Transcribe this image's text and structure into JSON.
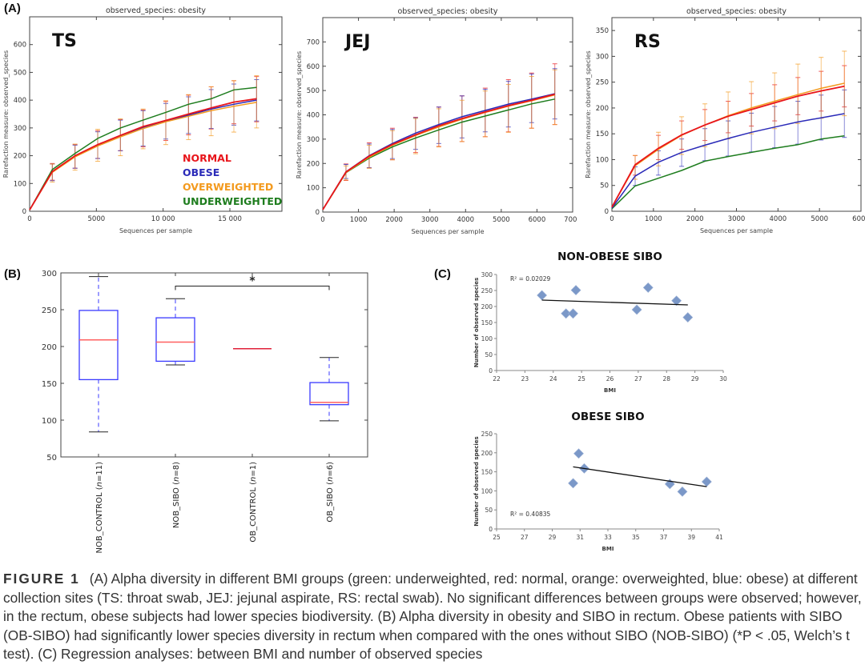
{
  "panel_labels": {
    "a": "(A)",
    "b": "(B)",
    "c": "(C)"
  },
  "caption": {
    "head": "FIGURE 1",
    "body": "(A) Alpha diversity in different BMI groups (green: underweighted, red: normal, orange: overweighted, blue: obese) at different collection sites (TS: throat swab, JEJ: jejunal aspirate, RS: rectal swab). No significant differences between groups were observed; however, in the rectum, obese subjects had lower species biodiversity. (B) Alpha diversity in obesity and SIBO in rectum. Obese patients with SIBO (OB-SIBO) had significantly lower species diversity in rectum when compared with the ones without SIBO (NOB-SIBO) (*P < .05, Welch’s t test). (C) Regression analyses: between BMI and number of observed species"
  },
  "colors": {
    "normal": "#e8151b",
    "obese": "#2a2ab8",
    "overweighted": "#f39a1e",
    "underweighted": "#1e7d1e",
    "box": "#3a3aff",
    "median": "#ff6060",
    "marker": "#7b98c8"
  },
  "chart_data": [
    {
      "id": "TS",
      "type": "line",
      "title": "observed_species:  obesity",
      "site_label": "TS",
      "xlabel": "Sequences per sample",
      "ylabel": "Rarefaction measure: observed_species",
      "xlim": [
        0,
        18900
      ],
      "ylim": [
        0,
        700
      ],
      "xticks": [
        0,
        5000,
        10000,
        15000
      ],
      "xtick_labels": [
        "0",
        "5000",
        "10 000",
        "15 000"
      ],
      "yticks": [
        0,
        100,
        200,
        300,
        400,
        500,
        600
      ],
      "legend": [
        "NORMAL",
        "OBESE",
        "OVERWEIGHTED",
        "UNDERWEIGHTED"
      ],
      "legend_placement": "bottom-right",
      "x": [
        0,
        1700,
        3400,
        5100,
        6800,
        8500,
        10200,
        11900,
        13600,
        15300,
        17000
      ],
      "series": [
        {
          "name": "NORMAL",
          "color_key": "normal",
          "values": [
            5,
            143,
            200,
            240,
            273,
            305,
            327,
            350,
            372,
            393,
            405
          ],
          "err_lo": [
            5,
            112,
            155,
            190,
            218,
            232,
            255,
            275,
            296,
            315,
            322
          ],
          "err_hi": [
            5,
            172,
            240,
            290,
            330,
            365,
            395,
            418,
            448,
            470,
            485
          ]
        },
        {
          "name": "OBESE",
          "color_key": "obese",
          "values": [
            5,
            142,
            199,
            238,
            272,
            302,
            325,
            346,
            368,
            385,
            400
          ],
          "err_lo": [
            5,
            110,
            155,
            190,
            218,
            235,
            260,
            280,
            298,
            310,
            325
          ],
          "err_hi": [
            5,
            170,
            238,
            286,
            328,
            362,
            388,
            412,
            438,
            458,
            474
          ]
        },
        {
          "name": "OVERWEIGHTED",
          "color_key": "overweighted",
          "values": [
            5,
            140,
            196,
            235,
            268,
            298,
            322,
            342,
            362,
            378,
            392
          ],
          "err_lo": [
            5,
            105,
            148,
            180,
            200,
            225,
            240,
            258,
            272,
            285,
            300
          ],
          "err_hi": [
            5,
            170,
            242,
            295,
            333,
            368,
            398,
            420,
            448,
            470,
            488
          ]
        },
        {
          "name": "UNDERWEIGHTED",
          "color_key": "underweighted",
          "values": [
            5,
            150,
            208,
            262,
            300,
            328,
            356,
            385,
            405,
            437,
            446
          ],
          "err_lo": null,
          "err_hi": null
        }
      ]
    },
    {
      "id": "JEJ",
      "type": "line",
      "title": "observed_species:  obesity",
      "site_label": "JEJ",
      "xlabel": "Sequences per sample",
      "ylabel": "Rarefaction measure: observed_species",
      "xlim": [
        0,
        7000
      ],
      "ylim": [
        0,
        800
      ],
      "xticks": [
        0,
        1000,
        2000,
        3000,
        4000,
        5000,
        6000,
        7000
      ],
      "xtick_labels": [
        "0",
        "1000",
        "2000",
        "3000",
        "4000",
        "5000",
        "6000",
        "7000"
      ],
      "yticks": [
        0,
        100,
        200,
        300,
        400,
        500,
        600,
        700
      ],
      "x": [
        0,
        650,
        1300,
        1950,
        2600,
        3250,
        3900,
        4550,
        5200,
        5850,
        6500
      ],
      "series": [
        {
          "name": "NORMAL",
          "color_key": "normal",
          "values": [
            10,
            165,
            230,
            278,
            318,
            355,
            385,
            412,
            438,
            460,
            485
          ],
          "err_lo": [
            10,
            130,
            182,
            215,
            245,
            270,
            290,
            310,
            330,
            345,
            360
          ],
          "err_hi": [
            10,
            198,
            285,
            345,
            390,
            432,
            478,
            510,
            545,
            572,
            610
          ]
        },
        {
          "name": "OBESE",
          "color_key": "obese",
          "values": [
            10,
            166,
            232,
            282,
            325,
            360,
            392,
            418,
            444,
            465,
            487
          ],
          "err_lo": [
            10,
            138,
            182,
            220,
            258,
            282,
            305,
            330,
            350,
            368,
            383
          ],
          "err_hi": [
            10,
            196,
            280,
            340,
            388,
            432,
            478,
            505,
            538,
            568,
            590
          ]
        },
        {
          "name": "OVERWEIGHTED",
          "color_key": "overweighted",
          "values": [
            10,
            163,
            226,
            275,
            315,
            350,
            382,
            410,
            436,
            458,
            482
          ],
          "err_lo": [
            10,
            132,
            180,
            215,
            240,
            268,
            290,
            310,
            328,
            345,
            360
          ],
          "err_hi": [
            10,
            190,
            275,
            335,
            385,
            425,
            460,
            498,
            525,
            558,
            585
          ]
        },
        {
          "name": "UNDERWEIGHTED",
          "color_key": "underweighted",
          "values": [
            10,
            162,
            222,
            268,
            305,
            338,
            370,
            395,
            420,
            445,
            465
          ],
          "err_lo": null,
          "err_hi": null
        }
      ]
    },
    {
      "id": "RS",
      "type": "line",
      "title": "observed_species:  obesity",
      "site_label": "RS",
      "xlabel": "Sequences per sample",
      "ylabel": "Rarefaction measure: observed_species",
      "xlim": [
        0,
        6000
      ],
      "ylim": [
        0,
        375
      ],
      "xticks": [
        0,
        1000,
        2000,
        3000,
        4000,
        5000,
        6000
      ],
      "xtick_labels": [
        "0",
        "1000",
        "2000",
        "3000",
        "4000",
        "5000",
        "6000"
      ],
      "yticks": [
        0,
        50,
        100,
        150,
        200,
        250,
        300,
        350
      ],
      "x": [
        0,
        560,
        1120,
        1680,
        2240,
        2800,
        3360,
        3920,
        4480,
        5040,
        5600
      ],
      "series": [
        {
          "name": "NORMAL",
          "color_key": "normal",
          "values": [
            8,
            90,
            122,
            148,
            167,
            184,
            197,
            210,
            223,
            233,
            242
          ],
          "err_lo": [
            8,
            70,
            100,
            120,
            137,
            152,
            165,
            175,
            187,
            194,
            202
          ],
          "err_hi": [
            8,
            108,
            147,
            175,
            197,
            213,
            228,
            245,
            259,
            271,
            282
          ]
        },
        {
          "name": "OBESE",
          "color_key": "obese",
          "values": [
            6,
            68,
            95,
            114,
            128,
            141,
            153,
            163,
            173,
            181,
            189
          ],
          "err_lo": [
            6,
            50,
            70,
            87,
            98,
            107,
            115,
            123,
            130,
            138,
            143
          ],
          "err_hi": [
            6,
            86,
            117,
            140,
            160,
            175,
            190,
            203,
            213,
            225,
            235
          ]
        },
        {
          "name": "OVERWEIGHTED",
          "color_key": "overweighted",
          "values": [
            8,
            88,
            120,
            147,
            167,
            185,
            200,
            213,
            226,
            238,
            248
          ],
          "err_lo": [
            8,
            62,
            88,
            110,
            125,
            140,
            150,
            160,
            170,
            180,
            185
          ],
          "err_hi": [
            8,
            108,
            153,
            183,
            208,
            231,
            251,
            268,
            285,
            298,
            310
          ]
        },
        {
          "name": "UNDERWEIGHTED",
          "color_key": "underweighted",
          "values": [
            5,
            49,
            64,
            79,
            97,
            106,
            114,
            122,
            129,
            140,
            146
          ],
          "err_lo": null,
          "err_hi": null
        }
      ]
    },
    {
      "id": "B",
      "type": "box",
      "title": "",
      "ylim": [
        50,
        300
      ],
      "yticks": [
        50,
        100,
        150,
        200,
        250,
        300
      ],
      "categories": [
        "NOB_CONTROL (n=11)",
        "NOB_SIBO (n=8)",
        "OB_CONTROL (n=1)",
        "OB_SIBO (n=6)"
      ],
      "category_parts": [
        {
          "name": "NOB_CONTROL (",
          "n": "n",
          "rest": "=11)"
        },
        {
          "name": "NOB_SIBO (",
          "n": "n",
          "rest": "=8)"
        },
        {
          "name": "OB_CONTROL (",
          "n": "n",
          "rest": "=1)"
        },
        {
          "name": "OB_SIBO (",
          "n": "n",
          "rest": "=6)"
        }
      ],
      "boxes": [
        {
          "whisker_low": 84,
          "q1": 155,
          "median": 209,
          "q3": 249,
          "whisker_high": 295
        },
        {
          "whisker_low": 175,
          "q1": 180,
          "median": 206,
          "q3": 239,
          "whisker_high": 265
        },
        {
          "whisker_low": 197,
          "q1": 197,
          "median": 197,
          "q3": 197,
          "whisker_high": 197
        },
        {
          "whisker_low": 99,
          "q1": 121,
          "median": 124,
          "q3": 151,
          "whisker_high": 185
        }
      ],
      "significance": {
        "from": 1,
        "to": 3,
        "level": 282,
        "label": "*"
      }
    },
    {
      "id": "C1",
      "type": "scatter",
      "title": "NON-OBESE  SIBO",
      "xlabel": "BMI",
      "ylabel": "Number of observed species",
      "xlim": [
        22,
        30
      ],
      "ylim": [
        0,
        300
      ],
      "xticks": [
        22,
        23,
        24,
        25,
        26,
        27,
        28,
        29,
        30
      ],
      "yticks": [
        0,
        50,
        100,
        150,
        200,
        250,
        300
      ],
      "points": [
        [
          23.6,
          235
        ],
        [
          24.45,
          178
        ],
        [
          24.7,
          178
        ],
        [
          24.8,
          251
        ],
        [
          26.95,
          190
        ],
        [
          27.35,
          259
        ],
        [
          28.35,
          218
        ],
        [
          28.75,
          166
        ]
      ],
      "trendline": [
        [
          23.6,
          220
        ],
        [
          28.75,
          205
        ]
      ],
      "r2_label": "R² = 0.02029",
      "r2_placement": "top-left"
    },
    {
      "id": "C2",
      "type": "scatter",
      "title": "OBESE SIBO",
      "xlabel": "BMI",
      "ylabel": "Number of observed species",
      "xlim": [
        25,
        41
      ],
      "ylim": [
        0,
        250
      ],
      "xticks": [
        25,
        27,
        29,
        31,
        33,
        35,
        37,
        39,
        41
      ],
      "yticks": [
        0,
        50,
        100,
        150,
        200,
        250
      ],
      "points": [
        [
          30.5,
          120
        ],
        [
          30.9,
          198
        ],
        [
          31.3,
          159
        ],
        [
          37.45,
          118
        ],
        [
          38.35,
          98
        ],
        [
          40.1,
          124
        ]
      ],
      "trendline": [
        [
          30.5,
          163
        ],
        [
          40.1,
          111
        ]
      ],
      "r2_label": "R² = 0.40835",
      "r2_placement": "bottom-left"
    }
  ]
}
